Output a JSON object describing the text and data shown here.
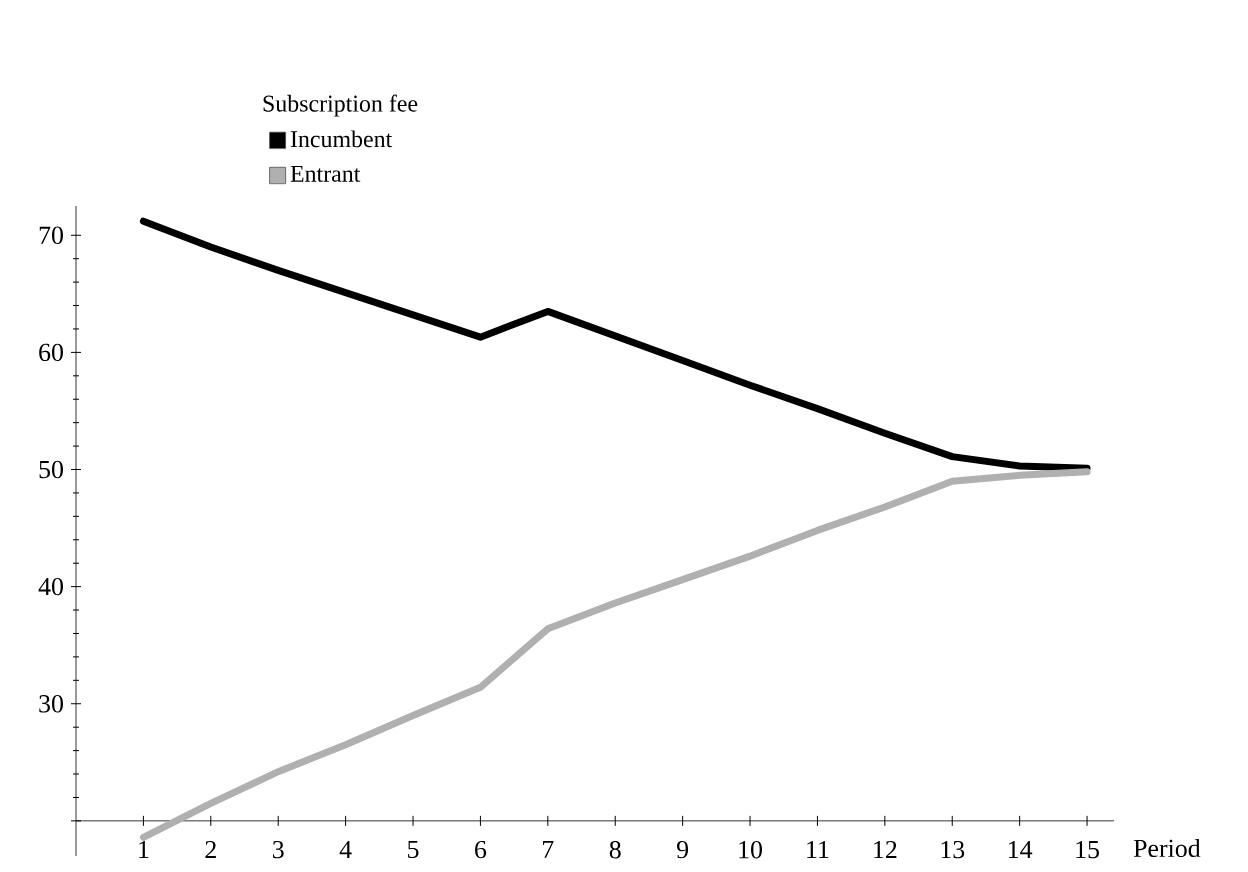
{
  "chart_data": {
    "type": "line",
    "legend_title": "Subscription fee",
    "xlabel": "Period",
    "x": [
      1,
      2,
      3,
      4,
      5,
      6,
      7,
      8,
      9,
      10,
      11,
      12,
      13,
      14,
      15
    ],
    "series": [
      {
        "name": "Incumbent",
        "color": "#000000",
        "values": [
          71.2,
          69.0,
          67.0,
          65.1,
          63.2,
          61.3,
          63.5,
          61.4,
          59.3,
          57.2,
          55.2,
          53.1,
          51.1,
          50.3,
          50.1
        ]
      },
      {
        "name": "Entrant",
        "color": "#b0b0b0",
        "values": [
          18.6,
          21.5,
          24.2,
          26.5,
          29.0,
          31.4,
          36.4,
          38.6,
          40.6,
          42.6,
          44.8,
          46.8,
          49.0,
          49.5,
          49.8
        ]
      }
    ],
    "xlim": [
      0,
      15.4
    ],
    "ylim": [
      17,
      72.5
    ],
    "xticks": [
      1,
      2,
      3,
      4,
      5,
      6,
      7,
      8,
      9,
      10,
      11,
      12,
      13,
      14,
      15
    ],
    "yticks": [
      {
        "value": 20,
        "label": null
      },
      30,
      40,
      50,
      60,
      70
    ],
    "legend": "top",
    "grid": false,
    "marker": "none",
    "line_style": "solid"
  }
}
